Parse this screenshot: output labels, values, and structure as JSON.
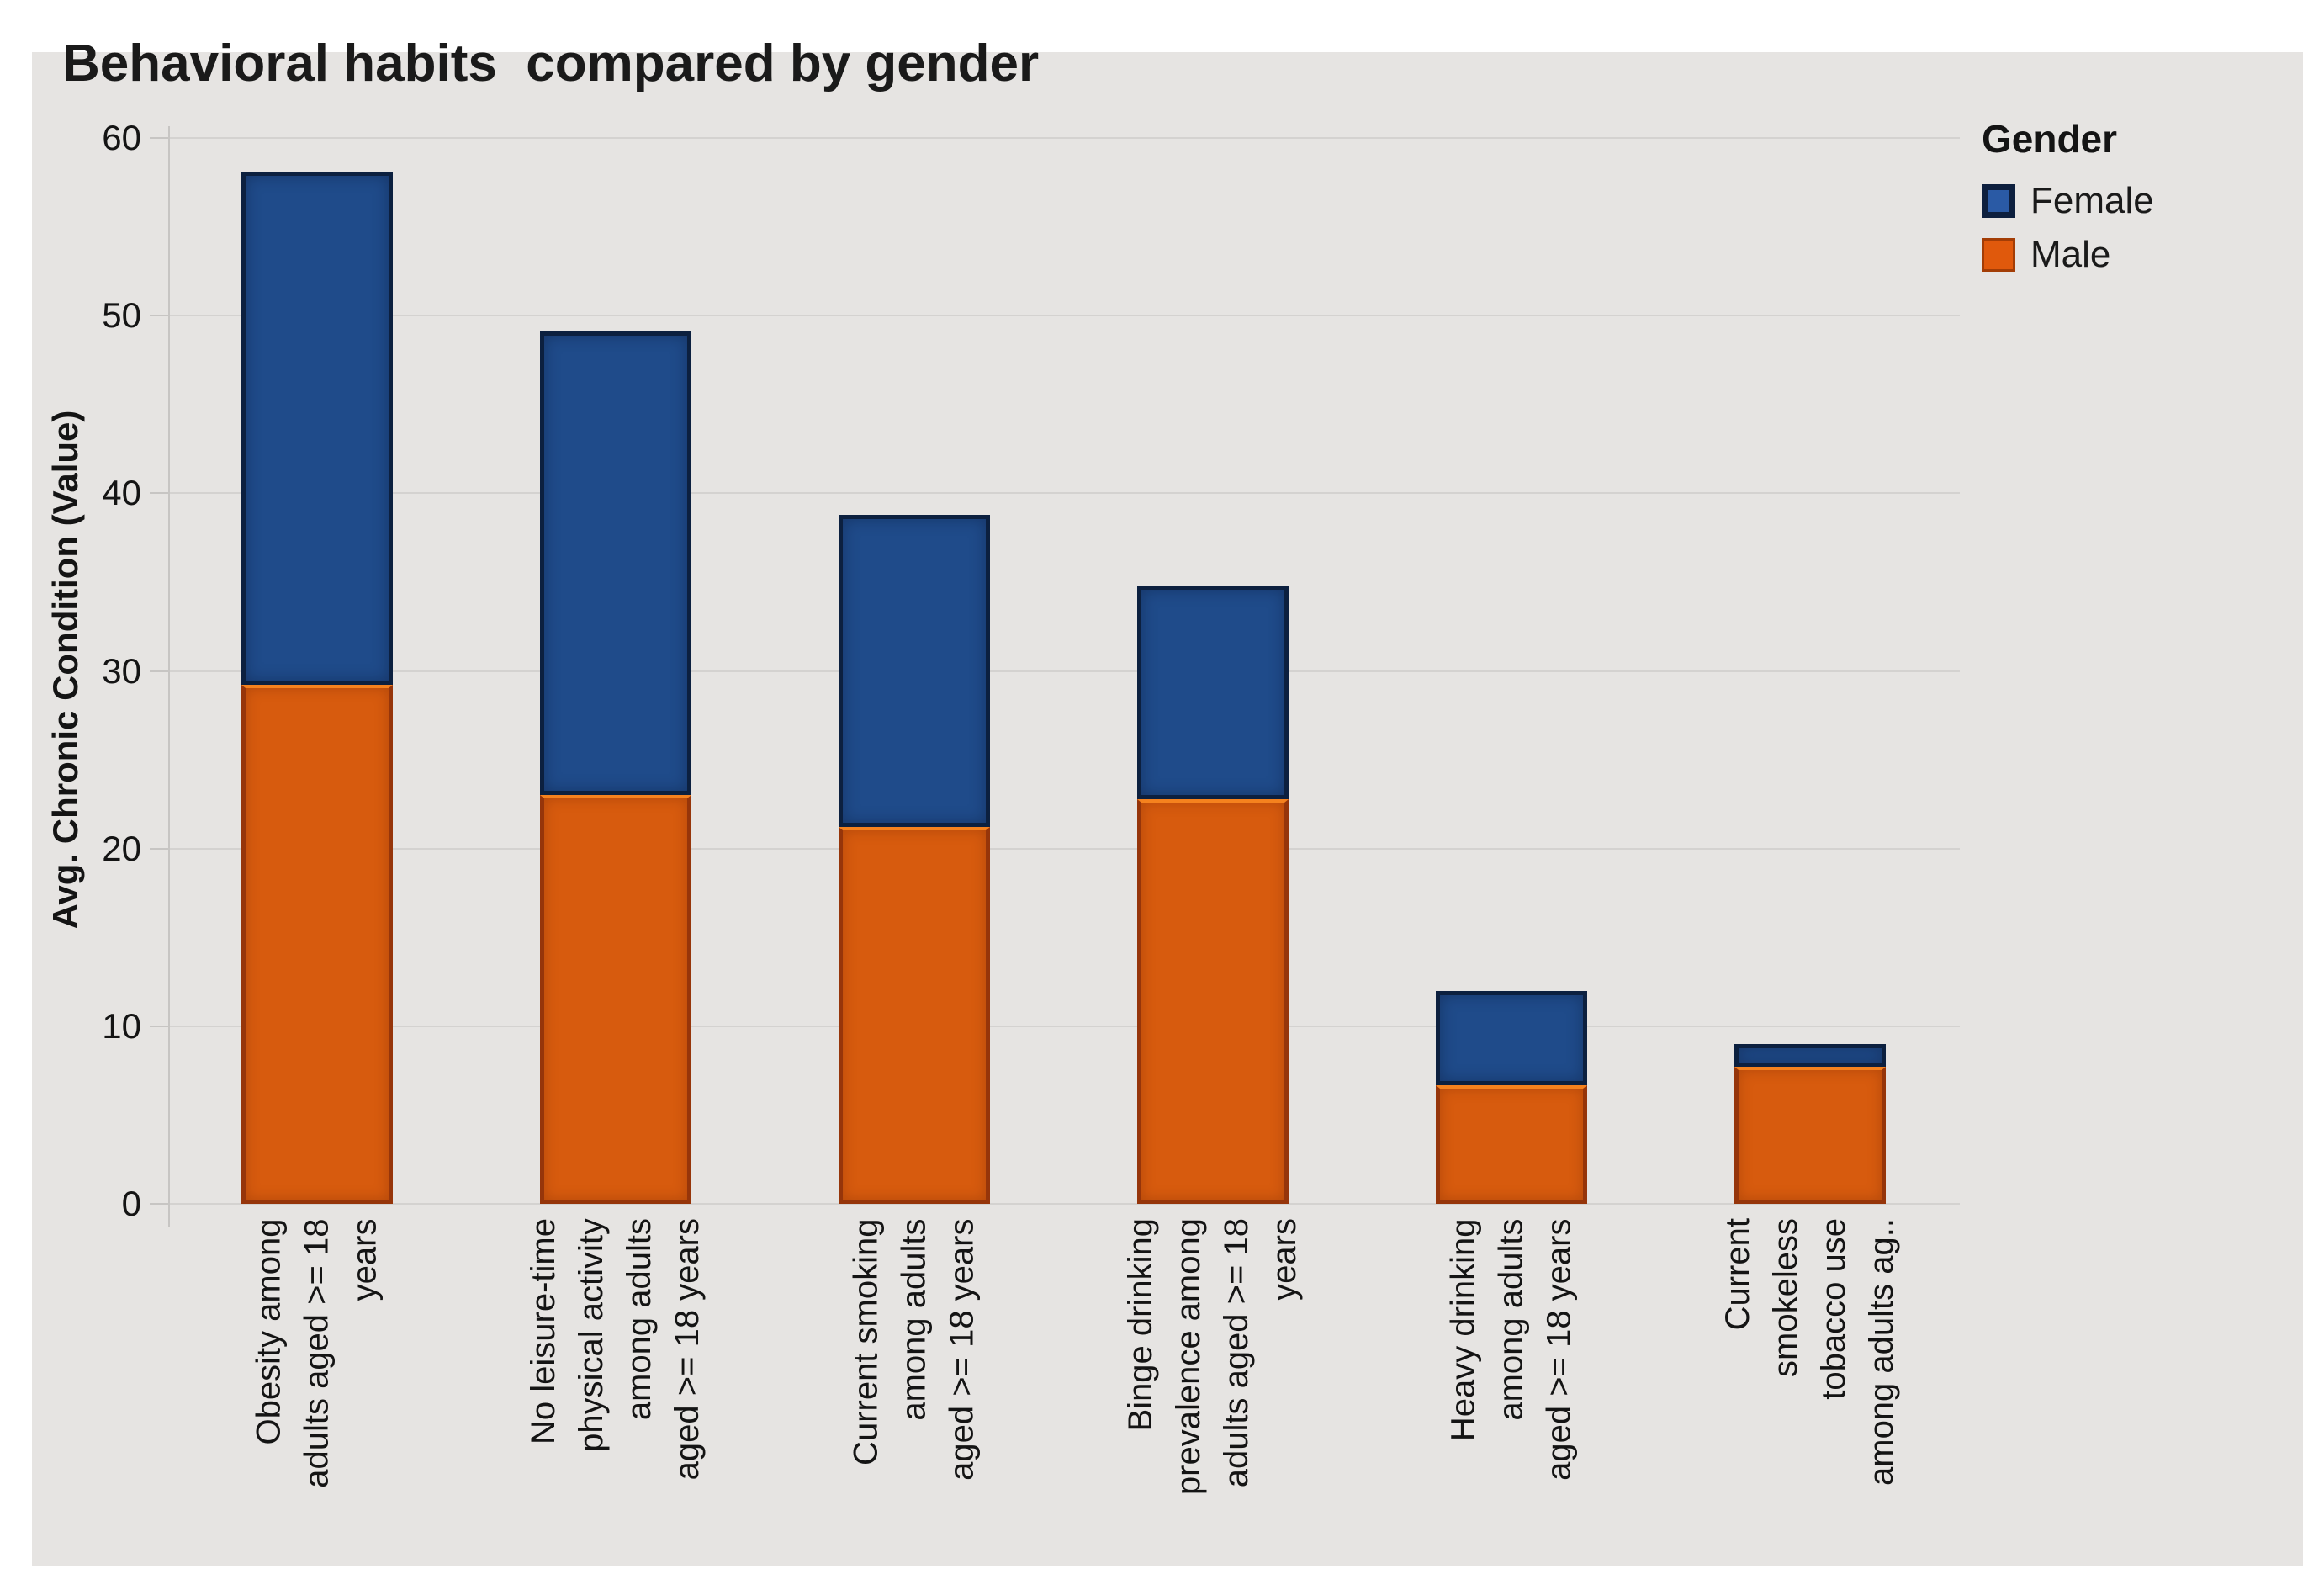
{
  "title": "Behavioral habits  compared by gender",
  "y_axis": {
    "title": "Avg. Chronic Condition (Value)",
    "ticks": [
      0,
      10,
      20,
      30,
      40,
      50,
      60
    ],
    "range": [
      0,
      60
    ]
  },
  "legend": {
    "title": "Gender",
    "items": [
      {
        "label": "Female",
        "color": "#1f4b8a"
      },
      {
        "label": "Male",
        "color": "#d75b0e"
      }
    ]
  },
  "chart_data": {
    "type": "bar",
    "stacked": true,
    "title": "Behavioral habits compared by gender",
    "xlabel": "",
    "ylabel": "Avg. Chronic Condition (Value)",
    "ylim": [
      0,
      60
    ],
    "grid": "horizontal",
    "legend_position": "right",
    "categories": [
      "Obesity among adults aged >= 18 years",
      "No leisure-time physical activity among adults aged >= 18 years",
      "Current smoking among adults aged >= 18 years",
      "Binge drinking prevalence among adults aged >= 18 years",
      "Heavy drinking among adults aged >= 18 years",
      "Current smokeless tobacco use among adults ag.."
    ],
    "category_label_lines": [
      [
        "Obesity among",
        "adults aged >= 18",
        "years"
      ],
      [
        "No leisure-time",
        "physical activity",
        "among adults",
        "aged >= 18 years"
      ],
      [
        "Current smoking",
        "among adults",
        "aged >= 18 years"
      ],
      [
        "Binge drinking",
        "prevalence among",
        "adults aged >= 18",
        "years"
      ],
      [
        "Heavy drinking",
        "among adults",
        "aged >= 18 years"
      ],
      [
        "Current",
        "smokeless",
        "tobacco use",
        "among adults ag.."
      ]
    ],
    "series": [
      {
        "name": "Female",
        "color": "#1f4b8a",
        "values": [
          28.9,
          26.1,
          17.6,
          12.0,
          5.3,
          1.3
        ]
      },
      {
        "name": "Male",
        "color": "#d75b0e",
        "values": [
          29.2,
          23.0,
          21.2,
          22.8,
          6.7,
          7.7
        ]
      }
    ],
    "totals": [
      58.1,
      49.1,
      38.8,
      34.8,
      12.0,
      9.0
    ]
  }
}
